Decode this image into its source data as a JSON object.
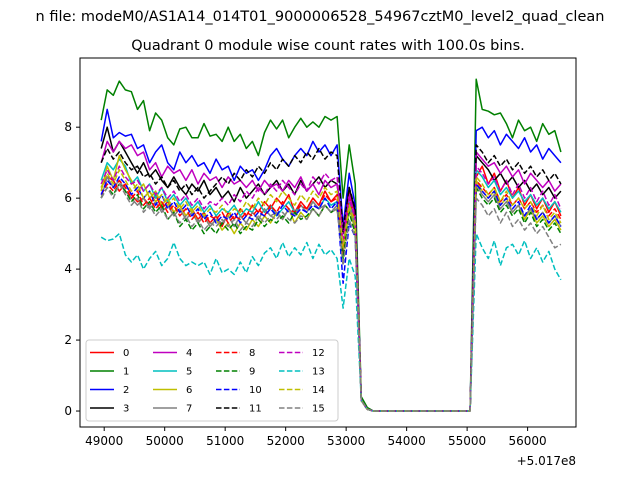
{
  "chart_data": {
    "type": "line",
    "suptitle": "n file: modeM0/AS1A14_014T01_9000006528_54967cztM0_level2_quad_clean",
    "title": "Quadrant 0 module wise count rates with 100.0s bins.",
    "xlabel": "",
    "ylabel": "",
    "x_offset_label": "+5.017e8",
    "xlim": [
      48600,
      56800
    ],
    "ylim": [
      -0.45,
      9.95
    ],
    "x_ticks": [
      49000,
      50000,
      51000,
      52000,
      53000,
      54000,
      55000,
      56000
    ],
    "y_ticks": [
      0,
      2,
      4,
      6,
      8
    ],
    "x_tick_labels": [
      "49000",
      "50000",
      "51000",
      "52000",
      "53000",
      "54000",
      "55000",
      "56000"
    ],
    "y_tick_labels": [
      "0",
      "2",
      "4",
      "6",
      "8"
    ],
    "x_start": 48950,
    "x_step": 100,
    "gap": {
      "low_start": 53900,
      "low_end": 55050,
      "low_value": 0.0
    },
    "legend": {
      "position": "lower-left",
      "columns": 4
    },
    "series": [
      {
        "name": "0",
        "color": "#ff0000",
        "dash": "solid",
        "pre": [
          6.3,
          6.6,
          6.5,
          6.2,
          6.4,
          6.1,
          5.9,
          6.0,
          5.8,
          6.1,
          5.7,
          5.9,
          5.6,
          5.8,
          5.5,
          5.7,
          5.4,
          5.6,
          5.3,
          5.5,
          5.2,
          5.6,
          5.4,
          5.7,
          5.5,
          5.8,
          5.6,
          5.9,
          5.7,
          6.0,
          5.8,
          6.1,
          5.6,
          5.9,
          5.7,
          6.0,
          5.8,
          6.2,
          5.9,
          6.1
        ],
        "dip": [
          4.5,
          6.2,
          5.5,
          0.3,
          0.05
        ],
        "post": [
          6.6,
          6.9,
          6.4,
          6.7,
          6.2,
          6.5,
          6.0,
          6.3,
          5.8,
          6.1,
          5.7,
          6.0,
          5.6,
          5.9,
          5.5
        ]
      },
      {
        "name": "1",
        "color": "#008000",
        "dash": "solid",
        "pre": [
          8.2,
          9.05,
          8.9,
          9.3,
          9.05,
          9.0,
          8.5,
          8.75,
          7.9,
          8.4,
          8.2,
          7.7,
          7.5,
          7.95,
          8.0,
          7.7,
          7.7,
          8.1,
          7.75,
          7.8,
          7.6,
          8.0,
          7.6,
          7.8,
          7.4,
          7.6,
          7.2,
          7.85,
          8.2,
          7.95,
          8.2,
          7.7,
          8.0,
          8.25,
          8.0,
          8.15,
          8.0,
          8.3,
          8.2,
          8.3
        ],
        "dip": [
          6.0,
          7.5,
          6.4,
          0.4,
          0.1
        ],
        "post": [
          9.35,
          8.5,
          8.45,
          8.35,
          8.4,
          8.1,
          7.7,
          8.2,
          7.9,
          8.0,
          7.6,
          8.1,
          7.8,
          7.9,
          7.3
        ]
      },
      {
        "name": "2",
        "color": "#0000ff",
        "dash": "solid",
        "pre": [
          7.6,
          8.5,
          7.7,
          7.85,
          7.75,
          7.8,
          7.4,
          7.5,
          7.0,
          7.3,
          7.5,
          7.0,
          6.8,
          7.3,
          7.0,
          7.2,
          6.9,
          7.0,
          6.7,
          7.1,
          6.8,
          6.9,
          6.5,
          6.9,
          6.7,
          6.8,
          6.5,
          6.8,
          7.2,
          7.4,
          7.1,
          6.9,
          7.2,
          7.4,
          7.2,
          7.6,
          7.3,
          7.5,
          7.2,
          7.5
        ],
        "dip": [
          5.2,
          6.7,
          5.8,
          0.3,
          0.05
        ],
        "post": [
          7.9,
          8.0,
          7.7,
          7.9,
          7.5,
          7.8,
          7.6,
          7.4,
          7.7,
          7.3,
          7.5,
          7.1,
          7.4,
          7.2,
          7.0
        ]
      },
      {
        "name": "3",
        "color": "#000000",
        "dash": "solid",
        "pre": [
          7.4,
          8.0,
          7.3,
          7.6,
          7.3,
          7.0,
          6.7,
          7.0,
          6.6,
          6.8,
          6.5,
          6.3,
          6.6,
          6.3,
          6.1,
          6.4,
          6.2,
          6.5,
          6.1,
          6.3,
          6.0,
          6.2,
          5.9,
          6.3,
          6.0,
          6.2,
          6.4,
          6.1,
          6.3,
          6.5,
          6.2,
          6.4,
          6.1,
          6.5,
          6.2,
          6.4,
          6.6,
          6.3,
          6.5,
          6.4
        ],
        "dip": [
          5.0,
          6.3,
          5.6,
          0.3,
          0.05
        ],
        "post": [
          7.2,
          7.0,
          6.8,
          6.5,
          6.7,
          6.4,
          6.6,
          6.3,
          6.5,
          6.2,
          6.4,
          6.1,
          6.3,
          6.0,
          6.2
        ]
      },
      {
        "name": "4",
        "color": "#bf00bf",
        "dash": "solid",
        "pre": [
          7.0,
          7.6,
          7.3,
          7.6,
          7.4,
          7.5,
          7.2,
          7.3,
          6.8,
          7.0,
          6.6,
          6.9,
          6.7,
          6.8,
          6.5,
          6.8,
          6.4,
          6.7,
          6.5,
          6.6,
          6.3,
          6.6,
          6.4,
          6.5,
          6.3,
          6.5,
          6.2,
          6.5,
          6.3,
          6.4,
          6.2,
          6.5,
          6.3,
          6.6,
          6.2,
          6.4,
          6.1,
          6.5,
          6.3,
          6.4
        ],
        "dip": [
          5.1,
          6.1,
          5.5,
          0.3,
          0.05
        ],
        "post": [
          7.3,
          7.1,
          6.9,
          7.0,
          6.7,
          6.9,
          6.6,
          6.8,
          6.4,
          6.7,
          6.5,
          6.3,
          6.5,
          6.2,
          6.4
        ]
      },
      {
        "name": "5",
        "color": "#00bfbf",
        "dash": "solid",
        "pre": [
          6.5,
          7.0,
          6.8,
          7.1,
          6.9,
          6.4,
          6.6,
          6.2,
          6.4,
          6.0,
          6.3,
          5.9,
          6.1,
          5.8,
          6.0,
          5.7,
          5.9,
          5.6,
          5.8,
          5.5,
          5.7,
          5.6,
          5.8,
          5.5,
          5.7,
          5.6,
          5.9,
          5.6,
          5.8,
          5.5,
          5.7,
          5.9,
          5.6,
          5.8,
          5.6,
          5.9,
          5.7,
          6.0,
          5.8,
          5.9
        ],
        "dip": [
          4.6,
          5.9,
          5.3,
          0.3,
          0.05
        ],
        "post": [
          6.8,
          6.6,
          6.3,
          6.5,
          6.1,
          6.3,
          6.0,
          6.2,
          5.9,
          6.1,
          5.8,
          6.0,
          5.7,
          5.9,
          5.6
        ]
      },
      {
        "name": "6",
        "color": "#bfbf00",
        "dash": "solid",
        "pre": [
          6.2,
          6.9,
          6.5,
          7.2,
          6.8,
          6.5,
          6.2,
          6.4,
          6.0,
          6.2,
          5.8,
          6.0,
          5.6,
          5.8,
          5.5,
          5.7,
          5.3,
          5.5,
          5.2,
          5.4,
          5.1,
          5.3,
          5.0,
          5.3,
          5.1,
          5.4,
          5.2,
          5.5,
          5.3,
          5.6,
          5.4,
          5.7,
          5.3,
          5.6,
          5.4,
          5.7,
          5.5,
          5.8,
          5.6,
          5.7
        ],
        "dip": [
          4.4,
          5.7,
          5.1,
          0.3,
          0.05
        ],
        "post": [
          6.5,
          6.2,
          6.0,
          6.2,
          5.8,
          6.0,
          5.6,
          5.8,
          5.4,
          5.7,
          5.3,
          5.5,
          5.2,
          5.4,
          5.1
        ]
      },
      {
        "name": "7",
        "color": "#808080",
        "dash": "solid",
        "pre": [
          6.0,
          6.6,
          6.3,
          6.5,
          6.2,
          6.0,
          5.8,
          6.0,
          5.7,
          5.9,
          5.6,
          5.8,
          5.5,
          5.7,
          5.4,
          5.6,
          5.3,
          5.5,
          5.2,
          5.4,
          5.3,
          5.5,
          5.2,
          5.5,
          5.3,
          5.6,
          5.4,
          5.7,
          5.5,
          5.6,
          5.4,
          5.7,
          5.5,
          5.8,
          5.6,
          5.9,
          5.7,
          5.8,
          5.6,
          5.8
        ],
        "dip": [
          4.5,
          5.8,
          5.2,
          0.3,
          0.05
        ],
        "post": [
          6.4,
          6.1,
          5.9,
          6.1,
          5.7,
          5.9,
          5.6,
          5.8,
          5.5,
          5.7,
          5.4,
          5.6,
          5.3,
          5.5,
          5.2
        ]
      },
      {
        "name": "8",
        "color": "#ff0000",
        "dash": "dashed",
        "pre": [
          6.1,
          6.4,
          6.2,
          6.5,
          6.3,
          6.0,
          6.2,
          5.8,
          6.0,
          5.7,
          5.9,
          5.6,
          5.8,
          5.5,
          5.7,
          5.4,
          5.6,
          5.3,
          5.5,
          5.4,
          5.6,
          5.3,
          5.5,
          5.4,
          5.6,
          5.5,
          5.7,
          5.5,
          5.8,
          5.6,
          5.9,
          5.7,
          5.6,
          5.8,
          5.7,
          6.0,
          5.8,
          6.1,
          5.9,
          6.0
        ],
        "dip": [
          4.4,
          6.0,
          5.4,
          0.3,
          0.05
        ],
        "post": [
          6.5,
          6.3,
          6.1,
          6.3,
          5.9,
          6.1,
          5.8,
          6.0,
          5.7,
          5.9,
          5.6,
          5.8,
          5.5,
          5.7,
          5.4
        ]
      },
      {
        "name": "9",
        "color": "#008000",
        "dash": "dashed",
        "pre": [
          6.0,
          6.3,
          6.1,
          6.4,
          6.2,
          5.9,
          6.1,
          5.7,
          5.9,
          5.6,
          5.8,
          5.4,
          5.6,
          5.2,
          5.4,
          5.1,
          5.3,
          5.0,
          5.2,
          5.0,
          5.3,
          5.1,
          5.3,
          5.0,
          5.2,
          5.1,
          5.4,
          5.2,
          5.4,
          5.3,
          5.5,
          5.3,
          5.6,
          5.4,
          5.5,
          5.7,
          5.5,
          5.8,
          5.6,
          5.7
        ],
        "dip": [
          4.3,
          5.6,
          5.0,
          0.3,
          0.05
        ],
        "post": [
          6.3,
          6.0,
          5.8,
          6.0,
          5.6,
          5.8,
          5.5,
          5.7,
          5.3,
          5.6,
          5.2,
          5.4,
          5.1,
          5.3,
          5.0
        ]
      },
      {
        "name": "10",
        "color": "#0000ff",
        "dash": "dashed",
        "pre": [
          6.1,
          6.5,
          6.3,
          6.6,
          6.4,
          6.1,
          6.3,
          6.0,
          6.2,
          5.8,
          6.1,
          5.7,
          5.9,
          5.6,
          5.8,
          5.5,
          5.7,
          5.4,
          5.6,
          5.3,
          5.5,
          5.4,
          5.6,
          5.3,
          5.5,
          5.4,
          5.6,
          5.5,
          5.7,
          5.5,
          5.8,
          5.6,
          5.5,
          5.7,
          5.6,
          5.8,
          5.7,
          6.0,
          5.7,
          5.9
        ],
        "dip": [
          3.6,
          5.3,
          4.9,
          0.3,
          0.05
        ],
        "post": [
          6.4,
          6.2,
          6.0,
          6.2,
          5.8,
          6.0,
          5.7,
          5.9,
          5.5,
          5.8,
          5.4,
          5.6,
          5.3,
          5.5,
          5.2
        ]
      },
      {
        "name": "11",
        "color": "#000000",
        "dash": "dashed",
        "pre": [
          7.0,
          7.4,
          7.1,
          7.3,
          7.0,
          6.8,
          6.9,
          6.6,
          6.7,
          6.4,
          6.6,
          6.3,
          6.5,
          6.2,
          6.4,
          6.1,
          6.3,
          6.0,
          6.2,
          6.4,
          6.6,
          6.4,
          6.7,
          6.5,
          6.8,
          6.6,
          6.9,
          6.7,
          7.0,
          6.8,
          7.1,
          6.9,
          7.2,
          7.0,
          7.3,
          7.1,
          7.4,
          7.1,
          7.3,
          7.2
        ],
        "dip": [
          5.1,
          6.3,
          5.7,
          0.3,
          0.05
        ],
        "post": [
          7.5,
          7.3,
          7.0,
          7.2,
          6.9,
          7.1,
          6.8,
          7.0,
          6.7,
          6.9,
          6.6,
          6.8,
          6.5,
          6.7,
          6.4
        ]
      },
      {
        "name": "12",
        "color": "#bf00bf",
        "dash": "dashed",
        "pre": [
          6.4,
          6.8,
          6.5,
          6.9,
          6.6,
          6.4,
          6.5,
          6.2,
          6.4,
          6.1,
          6.3,
          6.0,
          6.2,
          5.9,
          6.1,
          5.8,
          6.0,
          5.7,
          5.9,
          5.8,
          6.0,
          5.8,
          6.1,
          5.9,
          6.2,
          6.0,
          6.3,
          6.1,
          6.4,
          6.2,
          6.5,
          6.3,
          6.1,
          6.4,
          6.2,
          6.6,
          6.4,
          6.7,
          6.5,
          6.6
        ],
        "dip": [
          4.8,
          6.0,
          5.4,
          0.3,
          0.05
        ],
        "post": [
          6.9,
          6.7,
          6.4,
          6.6,
          6.2,
          6.5,
          6.1,
          6.4,
          6.0,
          6.3,
          5.9,
          6.2,
          5.8,
          6.1,
          5.7
        ]
      },
      {
        "name": "13",
        "color": "#00bfbf",
        "dash": "dashed",
        "pre": [
          4.9,
          4.8,
          4.85,
          5.0,
          4.4,
          4.2,
          4.4,
          4.0,
          4.3,
          4.5,
          4.1,
          4.3,
          4.75,
          4.3,
          4.1,
          4.2,
          4.1,
          4.2,
          3.85,
          4.3,
          3.9,
          4.0,
          3.85,
          4.2,
          3.9,
          4.35,
          4.1,
          4.45,
          4.6,
          4.3,
          4.75,
          4.35,
          4.6,
          4.4,
          4.75,
          4.3,
          4.7,
          4.4,
          4.55,
          4.3
        ],
        "dip": [
          2.9,
          4.3,
          3.8,
          0.3,
          0.05
        ],
        "post": [
          5.0,
          4.6,
          4.3,
          4.8,
          4.1,
          4.6,
          4.7,
          4.4,
          4.8,
          4.3,
          4.6,
          4.2,
          4.5,
          4.0,
          3.7
        ]
      },
      {
        "name": "14",
        "color": "#bfbf00",
        "dash": "dashed",
        "pre": [
          6.3,
          6.7,
          6.4,
          6.8,
          6.5,
          6.2,
          6.4,
          6.0,
          6.2,
          5.9,
          6.1,
          5.8,
          6.0,
          5.7,
          5.9,
          5.6,
          5.8,
          5.5,
          5.7,
          5.6,
          5.8,
          5.5,
          5.7,
          5.6,
          5.9,
          5.7,
          6.0,
          5.8,
          6.1,
          5.9,
          6.2,
          6.0,
          5.8,
          6.1,
          5.9,
          6.2,
          6.0,
          6.3,
          6.1,
          6.2
        ],
        "dip": [
          4.6,
          5.8,
          5.3,
          0.3,
          0.05
        ],
        "post": [
          6.6,
          6.4,
          6.1,
          6.3,
          5.9,
          6.2,
          5.8,
          6.0,
          5.7,
          5.9,
          5.5,
          5.8,
          5.4,
          5.6,
          5.3
        ]
      },
      {
        "name": "15",
        "color": "#808080",
        "dash": "dashed",
        "pre": [
          6.0,
          6.3,
          6.0,
          6.4,
          6.1,
          5.8,
          6.0,
          5.6,
          5.8,
          5.5,
          5.7,
          5.4,
          5.6,
          5.3,
          5.5,
          5.2,
          5.4,
          5.1,
          5.3,
          5.2,
          5.4,
          5.2,
          5.4,
          5.1,
          5.3,
          5.2,
          5.5,
          5.3,
          5.5,
          5.4,
          5.6,
          5.4,
          5.3,
          5.5,
          5.4,
          5.7,
          5.5,
          5.8,
          5.6,
          5.7
        ],
        "dip": [
          4.1,
          5.4,
          4.9,
          0.3,
          0.05
        ],
        "post": [
          6.0,
          5.8,
          5.5,
          5.7,
          5.3,
          5.6,
          5.2,
          5.4,
          5.1,
          5.3,
          5.0,
          5.2,
          4.9,
          4.6,
          4.7
        ]
      }
    ]
  }
}
